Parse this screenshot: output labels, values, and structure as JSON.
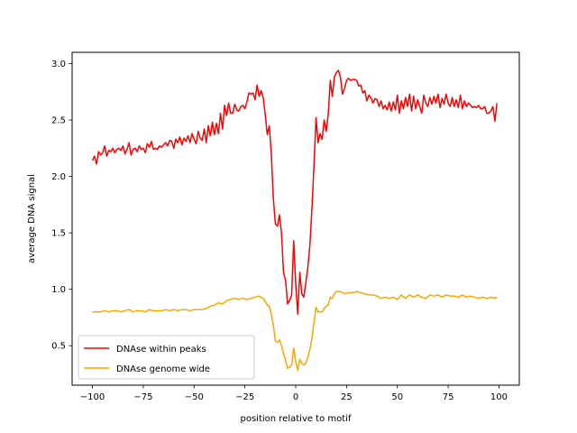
{
  "chart_data": {
    "type": "line",
    "xlabel": "position relative to motif",
    "ylabel": "average DNA signal",
    "xlim": [
      -110,
      110
    ],
    "ylim": [
      0.15,
      3.1
    ],
    "xticks": [
      -100,
      -75,
      -50,
      -25,
      0,
      25,
      50,
      75,
      100
    ],
    "yticks": [
      0.5,
      1.0,
      1.5,
      2.0,
      2.5,
      3.0
    ],
    "xtick_labels": [
      "−100",
      "−75",
      "−50",
      "−25",
      "0",
      "25",
      "50",
      "75",
      "100"
    ],
    "ytick_labels": [
      "0.5",
      "1.0",
      "1.5",
      "2.0",
      "2.5",
      "3.0"
    ],
    "grid": false,
    "legend_position": "lower-left",
    "series": [
      {
        "name": "DNAse within peaks",
        "color": "#ff0000",
        "points": [
          [
            -100,
            2.14
          ],
          [
            -99,
            2.18
          ],
          [
            -98,
            2.11
          ],
          [
            -97,
            2.22
          ],
          [
            -96,
            2.19
          ],
          [
            -95,
            2.21
          ],
          [
            -94,
            2.27
          ],
          [
            -93,
            2.18
          ],
          [
            -92,
            2.23
          ],
          [
            -91,
            2.22
          ],
          [
            -90,
            2.25
          ],
          [
            -89,
            2.21
          ],
          [
            -88,
            2.24
          ],
          [
            -87,
            2.25
          ],
          [
            -86,
            2.23
          ],
          [
            -85,
            2.27
          ],
          [
            -84,
            2.2
          ],
          [
            -83,
            2.24
          ],
          [
            -82,
            2.3
          ],
          [
            -81,
            2.19
          ],
          [
            -80,
            2.24
          ],
          [
            -79,
            2.25
          ],
          [
            -78,
            2.22
          ],
          [
            -77,
            2.27
          ],
          [
            -76,
            2.24
          ],
          [
            -75,
            2.25
          ],
          [
            -74,
            2.21
          ],
          [
            -73,
            2.29
          ],
          [
            -72,
            2.26
          ],
          [
            -71,
            2.31
          ],
          [
            -70,
            2.24
          ],
          [
            -69,
            2.25
          ],
          [
            -68,
            2.24
          ],
          [
            -67,
            2.27
          ],
          [
            -66,
            2.26
          ],
          [
            -65,
            2.28
          ],
          [
            -64,
            2.3
          ],
          [
            -63,
            2.27
          ],
          [
            -62,
            2.32
          ],
          [
            -61,
            2.31
          ],
          [
            -60,
            2.25
          ],
          [
            -59,
            2.33
          ],
          [
            -58,
            2.3
          ],
          [
            -57,
            2.35
          ],
          [
            -56,
            2.28
          ],
          [
            -55,
            2.34
          ],
          [
            -54,
            2.31
          ],
          [
            -53,
            2.36
          ],
          [
            -52,
            2.3
          ],
          [
            -51,
            2.38
          ],
          [
            -50,
            2.33
          ],
          [
            -49,
            2.29
          ],
          [
            -48,
            2.4
          ],
          [
            -47,
            2.34
          ],
          [
            -46,
            2.32
          ],
          [
            -45,
            2.42
          ],
          [
            -44,
            2.3
          ],
          [
            -43,
            2.45
          ],
          [
            -42,
            2.36
          ],
          [
            -41,
            2.48
          ],
          [
            -40,
            2.37
          ],
          [
            -39,
            2.47
          ],
          [
            -38,
            2.38
          ],
          [
            -37,
            2.56
          ],
          [
            -36,
            2.42
          ],
          [
            -35,
            2.63
          ],
          [
            -34,
            2.54
          ],
          [
            -33,
            2.65
          ],
          [
            -32,
            2.56
          ],
          [
            -31,
            2.56
          ],
          [
            -30,
            2.64
          ],
          [
            -29,
            2.59
          ],
          [
            -28,
            2.58
          ],
          [
            -27,
            2.62
          ],
          [
            -26,
            2.63
          ],
          [
            -25,
            2.6
          ],
          [
            -24,
            2.66
          ],
          [
            -23,
            2.74
          ],
          [
            -22,
            2.73
          ],
          [
            -21,
            2.74
          ],
          [
            -20,
            2.68
          ],
          [
            -19,
            2.81
          ],
          [
            -18,
            2.71
          ],
          [
            -17,
            2.76
          ],
          [
            -16,
            2.7
          ],
          [
            -15,
            2.55
          ],
          [
            -14,
            2.37
          ],
          [
            -13,
            2.45
          ],
          [
            -12,
            2.2
          ],
          [
            -11,
            1.8
          ],
          [
            -10,
            1.58
          ],
          [
            -9,
            1.56
          ],
          [
            -8,
            1.66
          ],
          [
            -7,
            1.5
          ],
          [
            -6,
            1.15
          ],
          [
            -5,
            1.08
          ],
          [
            -4,
            0.87
          ],
          [
            -3,
            0.9
          ],
          [
            -2,
            0.95
          ],
          [
            -1,
            1.43
          ],
          [
            0,
            1.05
          ],
          [
            1,
            0.78
          ],
          [
            2,
            1.15
          ],
          [
            3,
            0.96
          ],
          [
            4,
            0.93
          ],
          [
            5,
            1.06
          ],
          [
            6,
            1.2
          ],
          [
            7,
            1.4
          ],
          [
            8,
            1.72
          ],
          [
            9,
            2.1
          ],
          [
            10,
            2.52
          ],
          [
            11,
            2.3
          ],
          [
            12,
            2.38
          ],
          [
            13,
            2.33
          ],
          [
            14,
            2.5
          ],
          [
            15,
            2.4
          ],
          [
            16,
            2.55
          ],
          [
            17,
            2.85
          ],
          [
            18,
            2.71
          ],
          [
            19,
            2.88
          ],
          [
            20,
            2.92
          ],
          [
            21,
            2.94
          ],
          [
            22,
            2.88
          ],
          [
            23,
            2.73
          ],
          [
            24,
            2.78
          ],
          [
            25,
            2.85
          ],
          [
            26,
            2.87
          ],
          [
            27,
            2.85
          ],
          [
            28,
            2.86
          ],
          [
            29,
            2.86
          ],
          [
            30,
            2.85
          ],
          [
            31,
            2.8
          ],
          [
            32,
            2.81
          ],
          [
            33,
            2.74
          ],
          [
            34,
            2.76
          ],
          [
            35,
            2.67
          ],
          [
            36,
            2.72
          ],
          [
            37,
            2.7
          ],
          [
            38,
            2.65
          ],
          [
            39,
            2.69
          ],
          [
            40,
            2.68
          ],
          [
            41,
            2.62
          ],
          [
            42,
            2.67
          ],
          [
            43,
            2.6
          ],
          [
            44,
            2.63
          ],
          [
            45,
            2.59
          ],
          [
            46,
            2.66
          ],
          [
            47,
            2.58
          ],
          [
            48,
            2.66
          ],
          [
            49,
            2.59
          ],
          [
            50,
            2.72
          ],
          [
            51,
            2.56
          ],
          [
            52,
            2.67
          ],
          [
            53,
            2.6
          ],
          [
            54,
            2.7
          ],
          [
            55,
            2.62
          ],
          [
            56,
            2.73
          ],
          [
            57,
            2.58
          ],
          [
            58,
            2.71
          ],
          [
            59,
            2.6
          ],
          [
            60,
            2.68
          ],
          [
            61,
            2.62
          ],
          [
            62,
            2.56
          ],
          [
            63,
            2.72
          ],
          [
            64,
            2.65
          ],
          [
            65,
            2.62
          ],
          [
            66,
            2.7
          ],
          [
            67,
            2.64
          ],
          [
            68,
            2.71
          ],
          [
            69,
            2.65
          ],
          [
            70,
            2.73
          ],
          [
            71,
            2.61
          ],
          [
            72,
            2.69
          ],
          [
            73,
            2.64
          ],
          [
            74,
            2.73
          ],
          [
            75,
            2.65
          ],
          [
            76,
            2.62
          ],
          [
            77,
            2.7
          ],
          [
            78,
            2.62
          ],
          [
            79,
            2.68
          ],
          [
            80,
            2.61
          ],
          [
            81,
            2.72
          ],
          [
            82,
            2.6
          ],
          [
            83,
            2.67
          ],
          [
            84,
            2.62
          ],
          [
            85,
            2.65
          ],
          [
            86,
            2.63
          ],
          [
            87,
            2.61
          ],
          [
            88,
            2.62
          ],
          [
            89,
            2.61
          ],
          [
            90,
            2.63
          ],
          [
            91,
            2.6
          ],
          [
            92,
            2.6
          ],
          [
            93,
            2.62
          ],
          [
            94,
            2.56
          ],
          [
            95,
            2.56
          ],
          [
            96,
            2.58
          ],
          [
            97,
            2.62
          ],
          [
            98,
            2.49
          ],
          [
            99,
            2.65
          ]
        ]
      },
      {
        "name": "DNAse genome wide",
        "color": "#ffa500",
        "points": [
          [
            -100,
            0.8
          ],
          [
            -98,
            0.8
          ],
          [
            -96,
            0.8
          ],
          [
            -94,
            0.81
          ],
          [
            -92,
            0.8
          ],
          [
            -90,
            0.81
          ],
          [
            -88,
            0.81
          ],
          [
            -86,
            0.8
          ],
          [
            -84,
            0.81
          ],
          [
            -82,
            0.82
          ],
          [
            -80,
            0.8
          ],
          [
            -78,
            0.81
          ],
          [
            -76,
            0.81
          ],
          [
            -74,
            0.8
          ],
          [
            -72,
            0.82
          ],
          [
            -70,
            0.81
          ],
          [
            -68,
            0.81
          ],
          [
            -66,
            0.81
          ],
          [
            -64,
            0.82
          ],
          [
            -62,
            0.81
          ],
          [
            -60,
            0.82
          ],
          [
            -58,
            0.81
          ],
          [
            -56,
            0.82
          ],
          [
            -54,
            0.82
          ],
          [
            -52,
            0.81
          ],
          [
            -50,
            0.82
          ],
          [
            -48,
            0.82
          ],
          [
            -46,
            0.82
          ],
          [
            -44,
            0.83
          ],
          [
            -42,
            0.85
          ],
          [
            -40,
            0.86
          ],
          [
            -38,
            0.88
          ],
          [
            -36,
            0.87
          ],
          [
            -34,
            0.9
          ],
          [
            -32,
            0.91
          ],
          [
            -30,
            0.92
          ],
          [
            -28,
            0.91
          ],
          [
            -26,
            0.92
          ],
          [
            -24,
            0.91
          ],
          [
            -22,
            0.92
          ],
          [
            -20,
            0.93
          ],
          [
            -18,
            0.94
          ],
          [
            -16,
            0.92
          ],
          [
            -14,
            0.86
          ],
          [
            -13,
            0.85
          ],
          [
            -12,
            0.78
          ],
          [
            -11,
            0.68
          ],
          [
            -10,
            0.54
          ],
          [
            -9,
            0.53
          ],
          [
            -8,
            0.55
          ],
          [
            -7,
            0.5
          ],
          [
            -6,
            0.43
          ],
          [
            -5,
            0.37
          ],
          [
            -4,
            0.3
          ],
          [
            -3,
            0.31
          ],
          [
            -2,
            0.33
          ],
          [
            -1,
            0.48
          ],
          [
            0,
            0.36
          ],
          [
            1,
            0.28
          ],
          [
            2,
            0.38
          ],
          [
            3,
            0.34
          ],
          [
            4,
            0.33
          ],
          [
            5,
            0.35
          ],
          [
            6,
            0.4
          ],
          [
            7,
            0.47
          ],
          [
            8,
            0.57
          ],
          [
            9,
            0.71
          ],
          [
            10,
            0.84
          ],
          [
            11,
            0.8
          ],
          [
            12,
            0.8
          ],
          [
            13,
            0.8
          ],
          [
            14,
            0.83
          ],
          [
            15,
            0.85
          ],
          [
            16,
            0.86
          ],
          [
            17,
            0.93
          ],
          [
            18,
            0.92
          ],
          [
            19,
            0.96
          ],
          [
            20,
            0.98
          ],
          [
            22,
            0.98
          ],
          [
            24,
            0.96
          ],
          [
            26,
            0.97
          ],
          [
            28,
            0.97
          ],
          [
            30,
            0.98
          ],
          [
            32,
            0.97
          ],
          [
            34,
            0.96
          ],
          [
            36,
            0.95
          ],
          [
            38,
            0.95
          ],
          [
            40,
            0.94
          ],
          [
            42,
            0.92
          ],
          [
            44,
            0.93
          ],
          [
            46,
            0.92
          ],
          [
            48,
            0.93
          ],
          [
            50,
            0.91
          ],
          [
            52,
            0.95
          ],
          [
            54,
            0.92
          ],
          [
            56,
            0.95
          ],
          [
            58,
            0.93
          ],
          [
            60,
            0.95
          ],
          [
            62,
            0.93
          ],
          [
            64,
            0.92
          ],
          [
            66,
            0.95
          ],
          [
            68,
            0.94
          ],
          [
            70,
            0.95
          ],
          [
            72,
            0.93
          ],
          [
            74,
            0.95
          ],
          [
            76,
            0.94
          ],
          [
            78,
            0.94
          ],
          [
            80,
            0.93
          ],
          [
            82,
            0.95
          ],
          [
            84,
            0.93
          ],
          [
            86,
            0.94
          ],
          [
            88,
            0.93
          ],
          [
            90,
            0.92
          ],
          [
            92,
            0.93
          ],
          [
            94,
            0.92
          ],
          [
            96,
            0.93
          ],
          [
            98,
            0.92
          ],
          [
            99,
            0.93
          ]
        ]
      }
    ]
  }
}
